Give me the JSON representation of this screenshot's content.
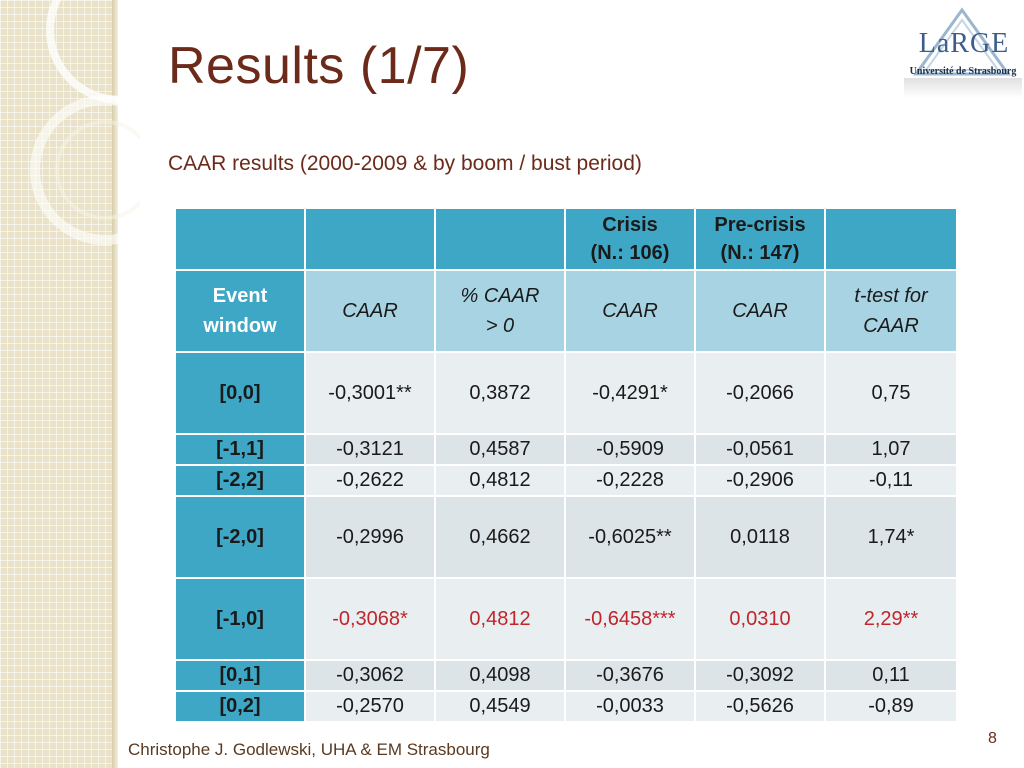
{
  "slide": {
    "title": "Results (1/7)",
    "subtitle": "CAAR results (2000-2009 & by boom / bust period)",
    "footer": "Christophe J. Godlewski, UHA & EM Strasbourg",
    "page_number": "8"
  },
  "logo": {
    "text": "LaRGE",
    "subtext": "Université de Strasbourg"
  },
  "table": {
    "group_header": [
      "",
      "",
      "",
      "Crisis (N.: 106)",
      "Pre-crisis (N.: 147)",
      ""
    ],
    "group_header_lines": [
      [
        "",
        ""
      ],
      [
        "",
        ""
      ],
      [
        "",
        ""
      ],
      [
        "Crisis",
        "(N.: 106)"
      ],
      [
        "Pre-crisis",
        "(N.: 147)"
      ],
      [
        "",
        ""
      ]
    ],
    "col_header_lines": [
      [
        "Event",
        "window"
      ],
      [
        "CAAR",
        ""
      ],
      [
        "% CAAR",
        "> 0"
      ],
      [
        "CAAR",
        ""
      ],
      [
        "CAAR",
        ""
      ],
      [
        "t-test for",
        "CAAR"
      ]
    ],
    "rows": [
      {
        "window": "[0,0]",
        "cells": [
          "-0,3001**",
          "0,3872",
          "-0,4291*",
          "-0,2066",
          "0,75"
        ]
      },
      {
        "window": "[-1,1]",
        "cells": [
          "-0,3121",
          "0,4587",
          "-0,5909",
          "-0,0561",
          "1,07"
        ]
      },
      {
        "window": "[-2,2]",
        "cells": [
          "-0,2622",
          "0,4812",
          "-0,2228",
          "-0,2906",
          "-0,11"
        ]
      },
      {
        "window": "[-2,0]",
        "cells": [
          "-0,2996",
          "0,4662",
          "-0,6025**",
          "0,0118",
          "1,74*"
        ]
      },
      {
        "window": "[-1,0]",
        "cells": [
          "-0,3068*",
          "0,4812",
          "-0,6458***",
          "0,0310",
          "2,29**"
        ]
      },
      {
        "window": "[0,1]",
        "cells": [
          "-0,3062",
          "0,4098",
          "-0,3676",
          "-0,3092",
          "0,11"
        ]
      },
      {
        "window": "[0,2]",
        "cells": [
          "-0,2570",
          "0,4549",
          "-0,0033",
          "-0,5626",
          "-0,89"
        ]
      }
    ]
  },
  "colors": {
    "title": "#6b2a1a",
    "header_dark": "#3fa7c6",
    "header_light": "#a7d3e3",
    "highlight_text": "#c0252c"
  }
}
